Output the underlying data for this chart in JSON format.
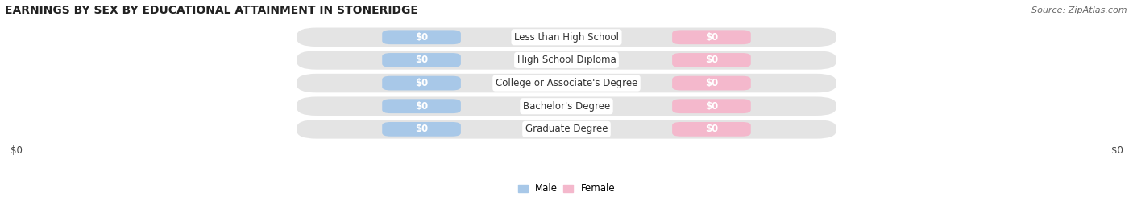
{
  "title": "EARNINGS BY SEX BY EDUCATIONAL ATTAINMENT IN STONERIDGE",
  "source": "Source: ZipAtlas.com",
  "categories": [
    "Less than High School",
    "High School Diploma",
    "College or Associate's Degree",
    "Bachelor's Degree",
    "Graduate Degree"
  ],
  "male_values": [
    0,
    0,
    0,
    0,
    0
  ],
  "female_values": [
    0,
    0,
    0,
    0,
    0
  ],
  "male_color": "#a8c8e8",
  "female_color": "#f4b8cc",
  "male_label": "Male",
  "female_label": "Female",
  "bar_label_value": "$0",
  "background_color": "#ffffff",
  "row_bg_color": "#e4e4e4",
  "title_fontsize": 10,
  "source_fontsize": 8,
  "label_fontsize": 8.5,
  "bar_height": 0.62,
  "figsize": [
    14.06,
    2.69
  ],
  "dpi": 100
}
